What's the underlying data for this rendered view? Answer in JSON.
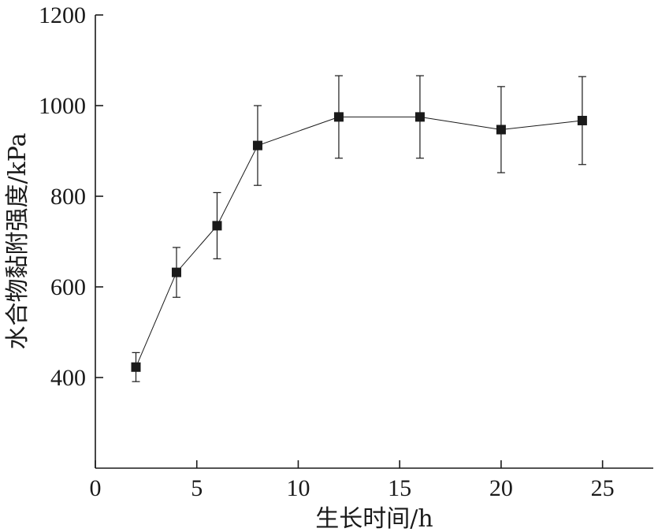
{
  "chart_data": {
    "type": "scatter",
    "xlabel": "生长时间/h",
    "ylabel": "水合物黏附强度/kPa",
    "xlim": [
      0,
      27.5
    ],
    "ylim": [
      200,
      1200
    ],
    "x_ticks": [
      0,
      5,
      10,
      15,
      20,
      25
    ],
    "y_ticks": [
      400,
      600,
      800,
      1000,
      1200
    ],
    "grid": false,
    "marker": "square",
    "line": true,
    "series": [
      {
        "x": [
          2,
          4,
          6,
          8,
          12,
          16,
          20,
          24
        ],
        "values": [
          423,
          632,
          735,
          912,
          975,
          975,
          947,
          967
        ],
        "error": [
          32,
          55,
          73,
          88,
          91,
          91,
          95,
          97
        ]
      }
    ]
  }
}
